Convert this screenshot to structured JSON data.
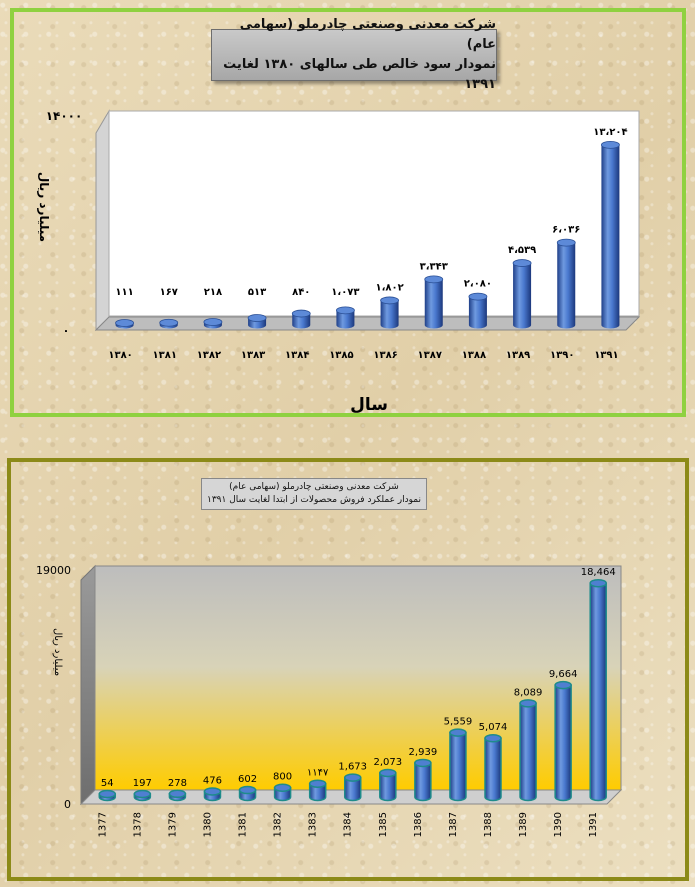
{
  "chart_data": [
    {
      "type": "bar",
      "title": "شرکت معدنی وصنعتی چادرملو (سهامی عام)",
      "subtitle": "نمودار سود خالص طی سالهای ۱۳۸۰ لغایت ۱۳۹۱",
      "xlabel": "سال",
      "ylabel": "میلیارد ریال",
      "categories": [
        "۱۳۸۰",
        "۱۳۸۱",
        "۱۳۸۲",
        "۱۳۸۳",
        "۱۳۸۴",
        "۱۳۸۵",
        "۱۳۸۶",
        "۱۳۸۷",
        "۱۳۸۸",
        "۱۳۸۹",
        "۱۳۹۰",
        "۱۳۹۱"
      ],
      "values": [
        111,
        167,
        218,
        513,
        840,
        1073,
        1802,
        3343,
        2080,
        4539,
        6036,
        13204
      ],
      "value_labels": [
        "۱۱۱",
        "۱۶۷",
        "۲۱۸",
        "۵۱۳",
        "۸۴۰",
        "۱،۰۷۳",
        "۱،۸۰۲",
        "۳،۳۴۳",
        "۲،۰۸۰",
        "۴،۵۳۹",
        "۶،۰۳۶",
        "۱۳،۲۰۴"
      ],
      "yticks": [
        "۰",
        "۱۴۰۰۰"
      ],
      "ylim": [
        0,
        14000
      ],
      "bar_color": "#3f6fc4",
      "wall_color": "#ffffff",
      "border_color": "#8fd140"
    },
    {
      "type": "bar",
      "title": "شرکت معدنی وصنعتی چادرملو (سهامی عام)",
      "subtitle": "نمودار عملکرد فروش محصولات از ابتدا لغایت سال ۱۳۹۱",
      "xlabel": "",
      "ylabel": "میلیارد ریال",
      "categories": [
        "1377",
        "1378",
        "1379",
        "1380",
        "1381",
        "1382",
        "1383",
        "1384",
        "1385",
        "1386",
        "1387",
        "1388",
        "1389",
        "1390",
        "1391"
      ],
      "values": [
        54,
        197,
        278,
        476,
        602,
        800,
        1147,
        1673,
        2073,
        2939,
        5559,
        5074,
        8089,
        9664,
        18464
      ],
      "value_labels": [
        "54",
        "197",
        "278",
        "476",
        "602",
        "800",
        "۱۱۴۷",
        "1,673",
        "2,073",
        "2,939",
        "5,559",
        "5,074",
        "8,089",
        "9,664",
        "18,464"
      ],
      "yticks": [
        "0",
        "19000"
      ],
      "ylim": [
        0,
        19000
      ],
      "bar_color": "#3f6fc4",
      "bar_outline": "#1e8b8b",
      "wall_top_color": "#bdbdbd",
      "wall_bottom_color": "#ffcc00",
      "border_color": "#8c8a18"
    }
  ]
}
